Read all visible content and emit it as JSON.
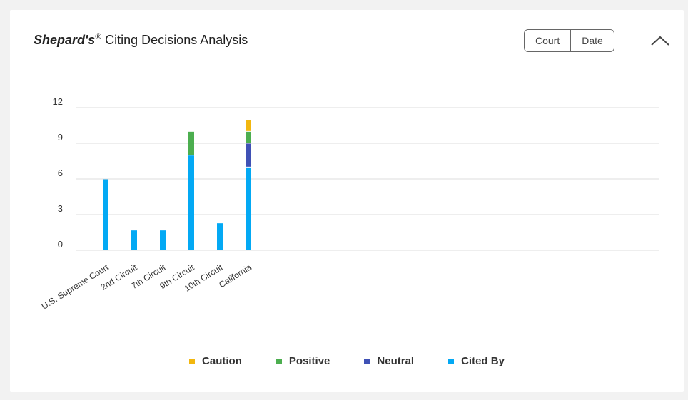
{
  "title_brand": "Shepard's",
  "title_mark": "®",
  "title_rest": " Citing Decisions Analysis",
  "toggle": {
    "court_label": "Court",
    "date_label": "Date"
  },
  "colors": {
    "caution": "#f2b70f",
    "positive": "#4cae4f",
    "neutral": "#3f51b5",
    "cited_by": "#03a9f4"
  },
  "chart_data": {
    "type": "bar",
    "stacked": true,
    "categories": [
      "U.S. Supreme Court",
      "2nd Circuit",
      "7th Circuit",
      "9th Circuit",
      "10th Circuit",
      "California"
    ],
    "series": [
      {
        "name": "Cited By",
        "color": "#03a9f4",
        "values": [
          6,
          1.7,
          1.7,
          8,
          2.3,
          7
        ]
      },
      {
        "name": "Neutral",
        "color": "#3f51b5",
        "values": [
          0,
          0,
          0,
          0,
          0,
          2
        ]
      },
      {
        "name": "Positive",
        "color": "#4cae4f",
        "values": [
          0,
          0,
          0,
          2,
          0,
          1
        ]
      },
      {
        "name": "Caution",
        "color": "#f2b70f",
        "values": [
          0,
          0,
          0,
          0,
          0,
          1
        ]
      }
    ],
    "yticks": [
      "0",
      "3",
      "6",
      "9",
      "12"
    ],
    "ylim": [
      0,
      12
    ],
    "grid": true,
    "legend": [
      "Caution",
      "Positive",
      "Neutral",
      "Cited By"
    ],
    "legend_position": "bottom"
  }
}
